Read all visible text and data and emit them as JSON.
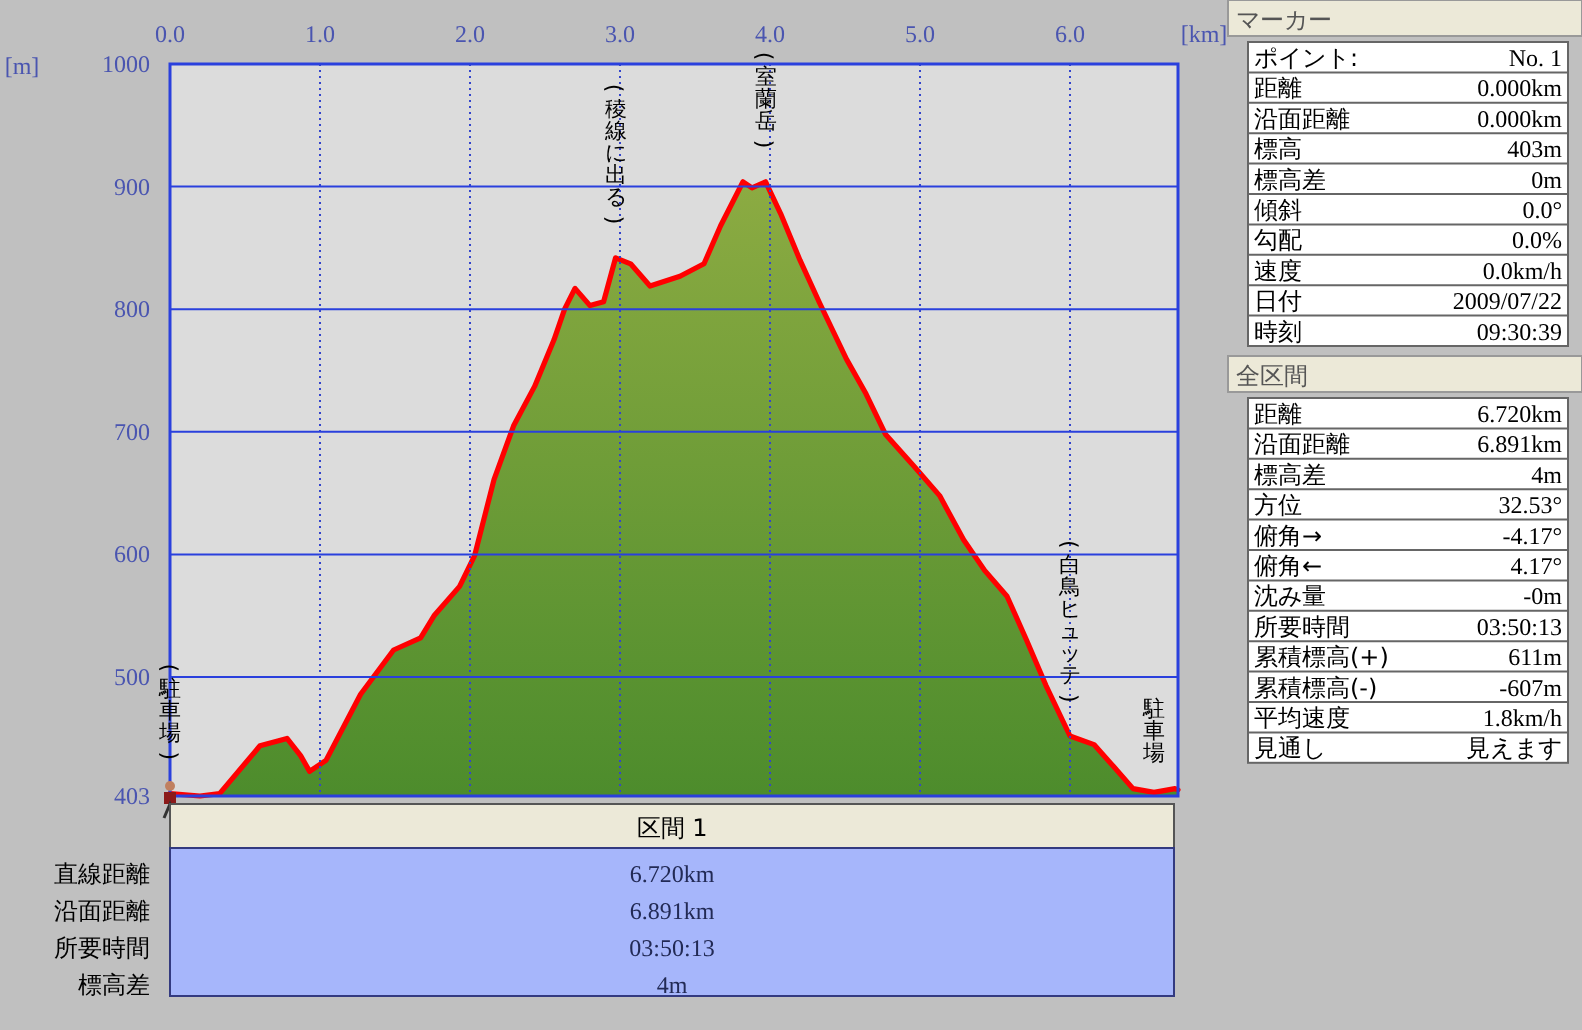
{
  "chart_data": [
    {
      "type": "area",
      "xlabel": "[km]",
      "ylabel": "[m]",
      "xlim": [
        0,
        6.72
      ],
      "ylim": [
        403,
        1000
      ],
      "grid": true,
      "xticks": [
        {
          "value": 0,
          "label": "0.0"
        },
        {
          "value": 1,
          "label": "1.0"
        },
        {
          "value": 2,
          "label": "2.0"
        },
        {
          "value": 3,
          "label": "3.0"
        },
        {
          "value": 4,
          "label": "4.0"
        },
        {
          "value": 5,
          "label": "5.0"
        },
        {
          "value": 6,
          "label": "6.0"
        }
      ],
      "yticks": [
        403,
        500,
        600,
        700,
        800,
        900,
        1000
      ],
      "series": [
        {
          "color": "#ff0000",
          "x": [
            0,
            0.2,
            0.33,
            0.6,
            0.78,
            0.87,
            0.93,
            1.04,
            1.27,
            1.49,
            1.67,
            1.76,
            1.93,
            2.03,
            2.16,
            2.29,
            2.43,
            2.56,
            2.63,
            2.7,
            2.8,
            2.89,
            2.97,
            3.07,
            3.2,
            3.4,
            3.56,
            3.67,
            3.82,
            3.88,
            3.97,
            4.07,
            4.2,
            4.33,
            4.51,
            4.64,
            4.77,
            4.96,
            5.13,
            5.29,
            5.43,
            5.58,
            5.71,
            5.84,
            6.0,
            6.16,
            6.29,
            6.42,
            6.56,
            6.7,
            6.72
          ],
          "values": [
            405,
            403,
            405,
            444,
            450,
            436,
            423,
            432,
            486,
            522,
            532,
            550,
            574,
            599,
            661,
            705,
            737,
            775,
            800,
            817,
            803,
            806,
            842,
            837,
            819,
            827,
            837,
            868,
            904,
            899,
            904,
            878,
            840,
            805,
            759,
            731,
            698,
            672,
            648,
            612,
            587,
            566,
            530,
            493,
            452,
            445,
            427,
            409,
            406,
            409,
            408
          ]
        }
      ],
      "annotations": [
        {
          "text": "(駐車場)",
          "x": 0,
          "y": 405
        },
        {
          "text": "(稜線に出る)",
          "x": 2.97,
          "y": 842
        },
        {
          "text": "(室蘭岳)",
          "x": 3.97,
          "y": 904
        },
        {
          "text": "(白鳥ヒュッテ)",
          "x": 6.0,
          "y": 452
        },
        {
          "text": "駐車場",
          "x": 6.56,
          "y": 406
        }
      ]
    },
    {
      "type": "other",
      "title": "区間 1",
      "annotations": [
        "直線距離",
        "6.720km",
        "沿面距離",
        "6.891km",
        "所要時間",
        "03:50:13",
        "標高差",
        "4m"
      ]
    },
    {
      "type": "other",
      "title": "マーカー",
      "annotations": [
        "ポイント:",
        "No. 1",
        "距離",
        "0.000km",
        "沿面距離",
        "0.000km",
        "標高",
        "403m",
        "標高差",
        "0m",
        "傾斜",
        "0.0°",
        "勾配",
        "0.0%",
        "速度",
        "0.0km/h",
        "日付",
        "2009/07/22",
        "時刻",
        "09:30:39"
      ]
    },
    {
      "type": "other",
      "title": "全区間",
      "annotations": [
        "距離",
        "6.720km",
        "沿面距離",
        "6.891km",
        "標高差",
        "4m",
        "方位",
        "32.53°",
        "俯角→",
        "-4.17°",
        "俯角←",
        "4.17°",
        "沈み量",
        "-0m",
        "所要時間",
        "03:50:13",
        "累積標高(+)",
        "611m",
        "累積標高(-)",
        "-607m",
        "平均速度",
        "1.8km/h",
        "見通し",
        "見えます"
      ]
    }
  ]
}
